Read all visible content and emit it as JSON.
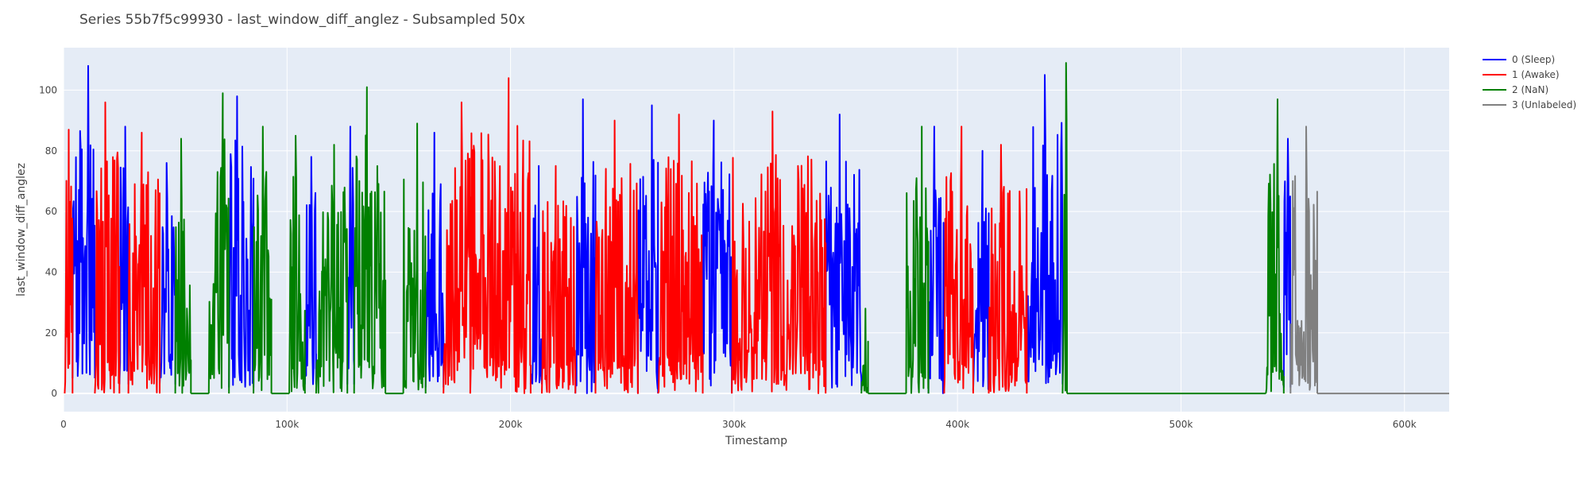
{
  "chart_data": {
    "type": "line",
    "title": "Series 55b7f5c99930 - last_window_diff_anglez - Subsampled 50x",
    "xlabel": "Timestamp",
    "ylabel": "last_window_diff_anglez",
    "xlim": [
      0,
      620000
    ],
    "ylim": [
      -6,
      114
    ],
    "x_ticks": [
      {
        "value": 0,
        "label": "0"
      },
      {
        "value": 100000,
        "label": "100k"
      },
      {
        "value": 200000,
        "label": "200k"
      },
      {
        "value": 300000,
        "label": "300k"
      },
      {
        "value": 400000,
        "label": "400k"
      },
      {
        "value": 500000,
        "label": "500k"
      },
      {
        "value": 600000,
        "label": "600k"
      }
    ],
    "y_ticks": [
      {
        "value": 0,
        "label": "0"
      },
      {
        "value": 20,
        "label": "20"
      },
      {
        "value": 40,
        "label": "40"
      },
      {
        "value": 60,
        "label": "60"
      },
      {
        "value": 80,
        "label": "80"
      },
      {
        "value": 100,
        "label": "100"
      }
    ],
    "grid": true,
    "legend_position": "top-right",
    "plot_background": "#e5ecf6",
    "series": [
      {
        "name": "0 (Sleep)",
        "color": "#0000ff",
        "segments": [
          {
            "x_start": 4000,
            "x_end": 14000,
            "min": 5,
            "max": 108
          },
          {
            "x_start": 25000,
            "x_end": 29000,
            "min": 3,
            "max": 88
          },
          {
            "x_start": 43000,
            "x_end": 50000,
            "min": 3,
            "max": 76
          },
          {
            "x_start": 74000,
            "x_end": 85000,
            "min": 2,
            "max": 98
          },
          {
            "x_start": 108000,
            "x_end": 113000,
            "min": 3,
            "max": 78
          },
          {
            "x_start": 127000,
            "x_end": 130000,
            "min": 3,
            "max": 88
          },
          {
            "x_start": 162000,
            "x_end": 170000,
            "min": 2,
            "max": 86
          },
          {
            "x_start": 209000,
            "x_end": 214000,
            "min": 3,
            "max": 75
          },
          {
            "x_start": 229000,
            "x_end": 238000,
            "min": 0,
            "max": 97
          },
          {
            "x_start": 257000,
            "x_end": 266000,
            "min": 0,
            "max": 95
          },
          {
            "x_start": 286000,
            "x_end": 299000,
            "min": 0,
            "max": 90
          },
          {
            "x_start": 341000,
            "x_end": 357000,
            "min": 1,
            "max": 92
          },
          {
            "x_start": 387000,
            "x_end": 394000,
            "min": 0,
            "max": 88
          },
          {
            "x_start": 407000,
            "x_end": 414000,
            "min": 1,
            "max": 80
          },
          {
            "x_start": 431000,
            "x_end": 447000,
            "min": 3,
            "max": 105
          },
          {
            "x_start": 546000,
            "x_end": 549000,
            "min": 2,
            "max": 84
          }
        ]
      },
      {
        "name": "1 (Awake)",
        "color": "#ff0000",
        "segments": [
          {
            "x_start": 500,
            "x_end": 4000,
            "min": 0,
            "max": 87
          },
          {
            "x_start": 14000,
            "x_end": 25000,
            "min": 0,
            "max": 96
          },
          {
            "x_start": 29000,
            "x_end": 43000,
            "min": 0,
            "max": 86
          },
          {
            "x_start": 170000,
            "x_end": 182000,
            "min": 0,
            "max": 96
          },
          {
            "x_start": 182000,
            "x_end": 209000,
            "min": 0,
            "max": 104
          },
          {
            "x_start": 214000,
            "x_end": 229000,
            "min": 0,
            "max": 75
          },
          {
            "x_start": 238000,
            "x_end": 257000,
            "min": 0,
            "max": 90
          },
          {
            "x_start": 266000,
            "x_end": 286000,
            "min": 0,
            "max": 92
          },
          {
            "x_start": 299000,
            "x_end": 341000,
            "min": 0,
            "max": 93
          },
          {
            "x_start": 394000,
            "x_end": 407000,
            "min": 0,
            "max": 88
          },
          {
            "x_start": 414000,
            "x_end": 431000,
            "min": 0,
            "max": 82
          }
        ]
      },
      {
        "name": "2 (NaN)",
        "color": "#008000",
        "segments": [
          {
            "x_start": 50000,
            "x_end": 57000,
            "min": 0,
            "max": 84
          },
          {
            "x_start": 57000,
            "x_end": 65000,
            "min": 0,
            "max": 0
          },
          {
            "x_start": 65000,
            "x_end": 74000,
            "min": 0,
            "max": 99
          },
          {
            "x_start": 85000,
            "x_end": 93000,
            "min": 0,
            "max": 88
          },
          {
            "x_start": 93000,
            "x_end": 101000,
            "min": 0,
            "max": 0
          },
          {
            "x_start": 101000,
            "x_end": 108000,
            "min": 0,
            "max": 85
          },
          {
            "x_start": 113000,
            "x_end": 127000,
            "min": 0,
            "max": 82
          },
          {
            "x_start": 130000,
            "x_end": 144000,
            "min": 0,
            "max": 101
          },
          {
            "x_start": 144000,
            "x_end": 152000,
            "min": 0,
            "max": 0
          },
          {
            "x_start": 152000,
            "x_end": 162000,
            "min": 0,
            "max": 89
          },
          {
            "x_start": 357000,
            "x_end": 360000,
            "min": 0,
            "max": 28
          },
          {
            "x_start": 360000,
            "x_end": 377000,
            "min": 0,
            "max": 0
          },
          {
            "x_start": 377000,
            "x_end": 387000,
            "min": 0,
            "max": 88
          },
          {
            "x_start": 447000,
            "x_end": 449000,
            "min": 0,
            "max": 109
          },
          {
            "x_start": 449000,
            "x_end": 538000,
            "min": 0,
            "max": 0
          },
          {
            "x_start": 538000,
            "x_end": 546000,
            "min": 0,
            "max": 97
          }
        ]
      },
      {
        "name": "3 (Unlabeled)",
        "color": "#808080",
        "segments": [
          {
            "x_start": 549000,
            "x_end": 561000,
            "min": 0,
            "max": 88
          },
          {
            "x_start": 561000,
            "x_end": 620000,
            "min": 0,
            "max": 0
          }
        ]
      }
    ]
  }
}
